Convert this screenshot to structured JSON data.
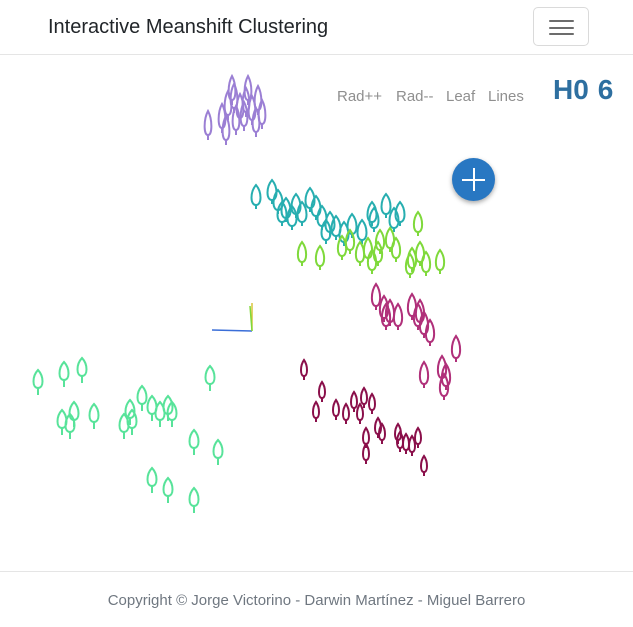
{
  "navbar": {
    "brand": "Interactive Meanshift Clustering",
    "menu_icon": "hamburger-icon"
  },
  "controls": {
    "rad_plus": "Rad++",
    "rad_minus": "Rad--",
    "leaf": "Leaf",
    "lines": "Lines"
  },
  "h0": {
    "label": "H0",
    "value": "6"
  },
  "add_button": {
    "icon": "plus-icon"
  },
  "footer": {
    "copyright": "Copyright © Jorge Victorino - Darwin Martínez - Miguel Barrero"
  },
  "colors": {
    "purple": "#9b7fd4",
    "teal": "#27aeb0",
    "lime": "#7fd93b",
    "magenta": "#b0307a",
    "crimson": "#8a0f4a",
    "mint": "#58e39a",
    "accent": "#2877c2",
    "h0": "#2e6fa0"
  }
}
